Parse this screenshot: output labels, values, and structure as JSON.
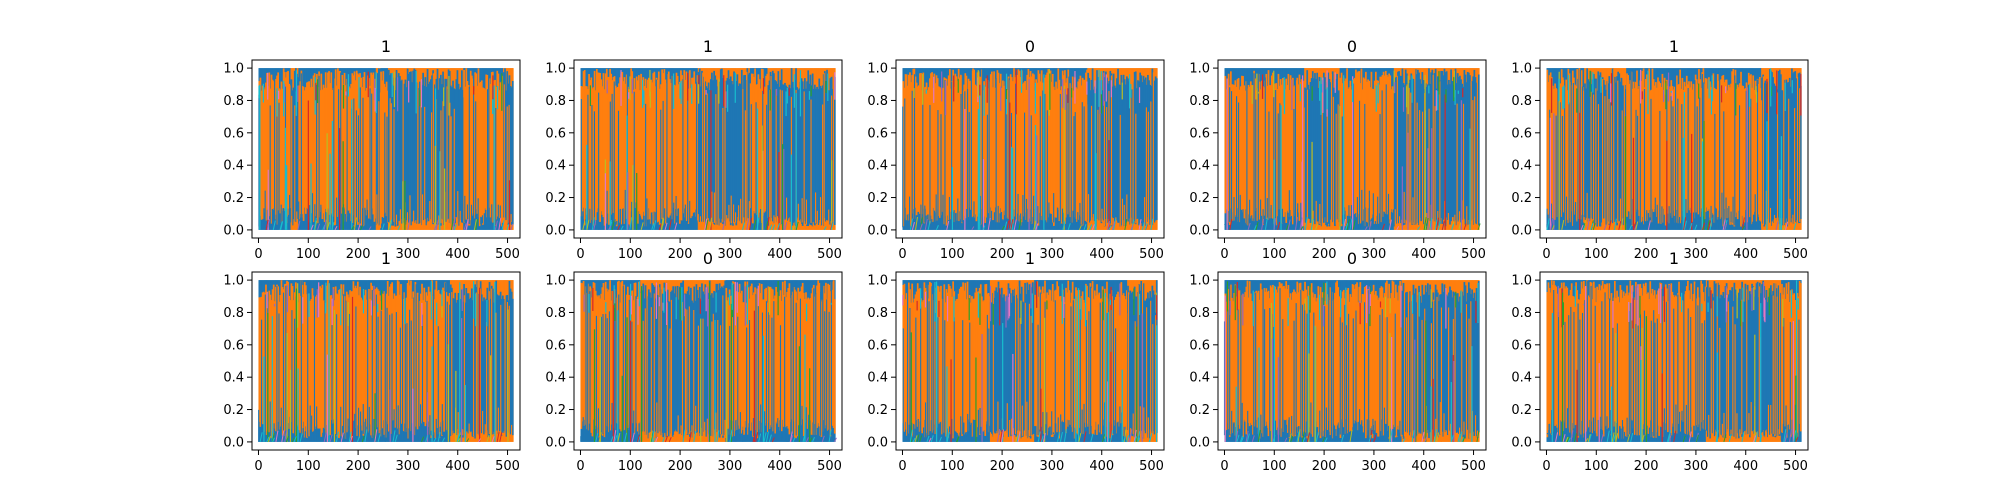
{
  "colors": {
    "blue": "#1f77b4",
    "orange": "#ff7f0e",
    "cyan": "#17becf",
    "green": "#2ca02c",
    "olive": "#bcbd22",
    "purple": "#9467bd",
    "red": "#d62728",
    "pink": "#e377c2"
  },
  "chart_data": [
    {
      "type": "line",
      "title": "1",
      "x_ticks": [
        "0",
        "100",
        "200",
        "300",
        "400",
        "500"
      ],
      "y_ticks": [
        "0.0",
        "0.2",
        "0.4",
        "0.6",
        "0.8",
        "1.0"
      ],
      "xlim": [
        -13,
        525
      ],
      "ylim": [
        -0.05,
        1.05
      ],
      "dominant_segments": [
        {
          "x_start": 0,
          "x_end": 30,
          "series": "orange"
        },
        {
          "x_start": 30,
          "x_end": 65,
          "series": "orange"
        },
        {
          "x_start": 65,
          "x_end": 80,
          "series": "blue"
        },
        {
          "x_start": 80,
          "x_end": 235,
          "series": "orange"
        },
        {
          "x_start": 235,
          "x_end": 245,
          "series": "blue"
        },
        {
          "x_start": 245,
          "x_end": 260,
          "series": "orange"
        },
        {
          "x_start": 260,
          "x_end": 410,
          "series": "blue"
        },
        {
          "x_start": 410,
          "x_end": 490,
          "series": "orange"
        },
        {
          "x_start": 490,
          "x_end": 511,
          "series": "blue"
        }
      ]
    },
    {
      "type": "line",
      "title": "1",
      "x_ticks": [
        "0",
        "100",
        "200",
        "300",
        "400",
        "500"
      ],
      "y_ticks": [
        "0.0",
        "0.2",
        "0.4",
        "0.6",
        "0.8",
        "1.0"
      ],
      "xlim": [
        -13,
        525
      ],
      "ylim": [
        -0.05,
        1.05
      ],
      "dominant_segments": [
        {
          "x_start": 0,
          "x_end": 235,
          "series": "orange"
        },
        {
          "x_start": 235,
          "x_end": 340,
          "series": "blue"
        },
        {
          "x_start": 340,
          "x_end": 375,
          "series": "orange"
        },
        {
          "x_start": 375,
          "x_end": 511,
          "series": "blue"
        }
      ]
    },
    {
      "type": "line",
      "title": "0",
      "x_ticks": [
        "0",
        "100",
        "200",
        "300",
        "400",
        "500"
      ],
      "y_ticks": [
        "0.0",
        "0.2",
        "0.4",
        "0.6",
        "0.8",
        "1.0"
      ],
      "xlim": [
        -13,
        525
      ],
      "ylim": [
        -0.05,
        1.05
      ],
      "dominant_segments": [
        {
          "x_start": 0,
          "x_end": 370,
          "series": "orange"
        },
        {
          "x_start": 370,
          "x_end": 511,
          "series": "blue"
        }
      ]
    },
    {
      "type": "line",
      "title": "0",
      "x_ticks": [
        "0",
        "100",
        "200",
        "300",
        "400",
        "500"
      ],
      "y_ticks": [
        "0.0",
        "0.2",
        "0.4",
        "0.6",
        "0.8",
        "1.0"
      ],
      "xlim": [
        -13,
        525
      ],
      "ylim": [
        -0.05,
        1.05
      ],
      "dominant_segments": [
        {
          "x_start": 0,
          "x_end": 160,
          "series": "orange"
        },
        {
          "x_start": 160,
          "x_end": 230,
          "series": "blue"
        },
        {
          "x_start": 230,
          "x_end": 340,
          "series": "orange"
        },
        {
          "x_start": 340,
          "x_end": 511,
          "series": "blue"
        }
      ]
    },
    {
      "type": "line",
      "title": "1",
      "x_ticks": [
        "0",
        "100",
        "200",
        "300",
        "400",
        "500"
      ],
      "y_ticks": [
        "0.0",
        "0.2",
        "0.4",
        "0.6",
        "0.8",
        "1.0"
      ],
      "xlim": [
        -13,
        525
      ],
      "ylim": [
        -0.05,
        1.05
      ],
      "dominant_segments": [
        {
          "x_start": 0,
          "x_end": 75,
          "series": "orange"
        },
        {
          "x_start": 75,
          "x_end": 160,
          "series": "blue"
        },
        {
          "x_start": 160,
          "x_end": 430,
          "series": "orange"
        },
        {
          "x_start": 430,
          "x_end": 511,
          "series": "blue"
        }
      ]
    },
    {
      "type": "line",
      "title": "1",
      "x_ticks": [
        "0",
        "100",
        "200",
        "300",
        "400",
        "500"
      ],
      "y_ticks": [
        "0.0",
        "0.2",
        "0.4",
        "0.6",
        "0.8",
        "1.0"
      ],
      "xlim": [
        -13,
        525
      ],
      "ylim": [
        -0.05,
        1.05
      ],
      "dominant_segments": [
        {
          "x_start": 0,
          "x_end": 385,
          "series": "orange"
        },
        {
          "x_start": 385,
          "x_end": 511,
          "series": "blue"
        }
      ]
    },
    {
      "type": "line",
      "title": "0",
      "x_ticks": [
        "0",
        "100",
        "200",
        "300",
        "400",
        "500"
      ],
      "y_ticks": [
        "0.0",
        "0.2",
        "0.4",
        "0.6",
        "0.8",
        "1.0"
      ],
      "xlim": [
        -13,
        525
      ],
      "ylim": [
        -0.05,
        1.05
      ],
      "dominant_segments": [
        {
          "x_start": 0,
          "x_end": 120,
          "series": "orange"
        },
        {
          "x_start": 120,
          "x_end": 290,
          "series": "blue"
        },
        {
          "x_start": 290,
          "x_end": 511,
          "series": "orange"
        }
      ]
    },
    {
      "type": "line",
      "title": "1",
      "x_ticks": [
        "0",
        "100",
        "200",
        "300",
        "400",
        "500"
      ],
      "y_ticks": [
        "0.0",
        "0.2",
        "0.4",
        "0.6",
        "0.8",
        "1.0"
      ],
      "xlim": [
        -13,
        525
      ],
      "ylim": [
        -0.05,
        1.05
      ],
      "dominant_segments": [
        {
          "x_start": 0,
          "x_end": 175,
          "series": "orange"
        },
        {
          "x_start": 175,
          "x_end": 265,
          "series": "blue"
        },
        {
          "x_start": 265,
          "x_end": 450,
          "series": "orange"
        },
        {
          "x_start": 450,
          "x_end": 511,
          "series": "blue"
        }
      ]
    },
    {
      "type": "line",
      "title": "0",
      "x_ticks": [
        "0",
        "100",
        "200",
        "300",
        "400",
        "500"
      ],
      "y_ticks": [
        "0.0",
        "0.2",
        "0.4",
        "0.6",
        "0.8",
        "1.0"
      ],
      "xlim": [
        -13,
        525
      ],
      "ylim": [
        -0.05,
        1.05
      ],
      "dominant_segments": [
        {
          "x_start": 0,
          "x_end": 355,
          "series": "orange"
        },
        {
          "x_start": 355,
          "x_end": 511,
          "series": "blue"
        }
      ]
    },
    {
      "type": "line",
      "title": "1",
      "x_ticks": [
        "0",
        "100",
        "200",
        "300",
        "400",
        "500"
      ],
      "y_ticks": [
        "0.0",
        "0.2",
        "0.4",
        "0.6",
        "0.8",
        "1.0"
      ],
      "xlim": [
        -13,
        525
      ],
      "ylim": [
        -0.05,
        1.05
      ],
      "dominant_segments": [
        {
          "x_start": 0,
          "x_end": 320,
          "series": "orange"
        },
        {
          "x_start": 320,
          "x_end": 470,
          "series": "blue"
        },
        {
          "x_start": 470,
          "x_end": 511,
          "series": "orange"
        }
      ]
    }
  ]
}
